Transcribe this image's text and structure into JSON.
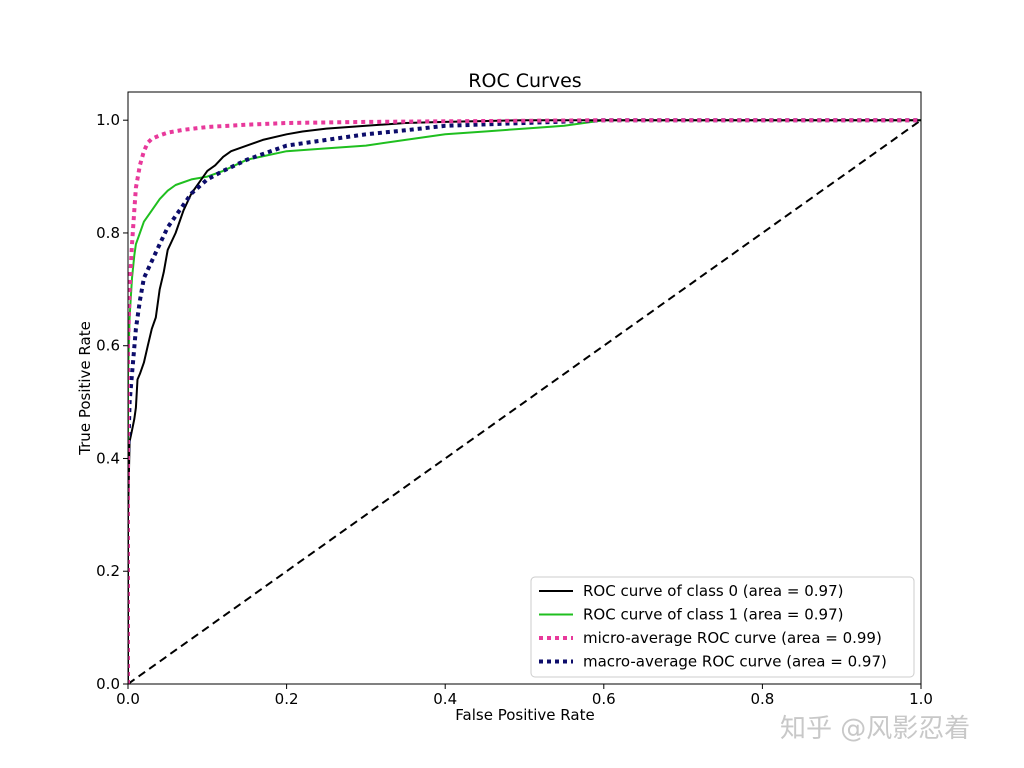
{
  "watermark": "知乎 @风影忍着",
  "chart_data": {
    "type": "line",
    "title": "ROC Curves",
    "xlabel": "False Positive Rate",
    "ylabel": "True Positive Rate",
    "xlim": [
      0.0,
      1.0
    ],
    "ylim": [
      0.0,
      1.05
    ],
    "xticks": [
      "0.0",
      "0.2",
      "0.4",
      "0.6",
      "0.8",
      "1.0"
    ],
    "yticks": [
      "0.0",
      "0.2",
      "0.4",
      "0.6",
      "0.8",
      "1.0"
    ],
    "grid": false,
    "legend_position": "lower-right",
    "series": [
      {
        "name": "ROC curve of class 0 (area = 0.97)",
        "color": "#000000",
        "style": "solid",
        "x": [
          0.0,
          0.0,
          0.002,
          0.005,
          0.008,
          0.01,
          0.012,
          0.015,
          0.02,
          0.025,
          0.03,
          0.035,
          0.04,
          0.045,
          0.05,
          0.06,
          0.07,
          0.08,
          0.09,
          0.1,
          0.11,
          0.12,
          0.13,
          0.15,
          0.17,
          0.2,
          0.22,
          0.25,
          0.3,
          0.35,
          0.4,
          0.5,
          0.6,
          0.8,
          1.0
        ],
        "y": [
          0.0,
          0.3,
          0.43,
          0.45,
          0.47,
          0.49,
          0.54,
          0.55,
          0.57,
          0.6,
          0.63,
          0.65,
          0.7,
          0.73,
          0.77,
          0.8,
          0.84,
          0.87,
          0.89,
          0.91,
          0.92,
          0.935,
          0.945,
          0.955,
          0.965,
          0.975,
          0.98,
          0.985,
          0.99,
          0.995,
          0.997,
          1.0,
          1.0,
          1.0,
          1.0
        ]
      },
      {
        "name": "ROC curve of class 1 (area = 0.97)",
        "color": "#1fbf1f",
        "style": "solid",
        "x": [
          0.0,
          0.0,
          0.002,
          0.005,
          0.008,
          0.01,
          0.015,
          0.02,
          0.03,
          0.04,
          0.05,
          0.06,
          0.08,
          0.1,
          0.12,
          0.15,
          0.2,
          0.25,
          0.3,
          0.35,
          0.4,
          0.45,
          0.5,
          0.55,
          0.6,
          0.8,
          1.0
        ],
        "y": [
          0.0,
          0.55,
          0.65,
          0.72,
          0.76,
          0.78,
          0.8,
          0.82,
          0.84,
          0.86,
          0.875,
          0.885,
          0.895,
          0.9,
          0.91,
          0.93,
          0.945,
          0.95,
          0.955,
          0.965,
          0.975,
          0.98,
          0.985,
          0.99,
          1.0,
          1.0,
          1.0
        ]
      },
      {
        "name": "micro-average ROC curve (area = 0.99)",
        "color": "#e8399b",
        "style": "dotted",
        "x": [
          0.0,
          0.0,
          0.002,
          0.005,
          0.008,
          0.01,
          0.015,
          0.02,
          0.025,
          0.03,
          0.04,
          0.05,
          0.07,
          0.1,
          0.15,
          0.2,
          0.3,
          0.4,
          0.6,
          0.8,
          1.0
        ],
        "y": [
          0.0,
          0.6,
          0.7,
          0.78,
          0.84,
          0.88,
          0.92,
          0.945,
          0.96,
          0.967,
          0.973,
          0.978,
          0.983,
          0.988,
          0.992,
          0.995,
          0.997,
          0.998,
          1.0,
          1.0,
          1.0
        ]
      },
      {
        "name": "macro-average ROC curve (area = 0.97)",
        "color": "#0d0d6b",
        "style": "dotted",
        "x": [
          0.0,
          0.0,
          0.002,
          0.005,
          0.01,
          0.015,
          0.02,
          0.03,
          0.04,
          0.05,
          0.06,
          0.07,
          0.08,
          0.1,
          0.12,
          0.15,
          0.2,
          0.25,
          0.3,
          0.35,
          0.4,
          0.5,
          0.6,
          0.8,
          1.0
        ],
        "y": [
          0.0,
          0.4,
          0.5,
          0.55,
          0.63,
          0.68,
          0.72,
          0.75,
          0.78,
          0.81,
          0.83,
          0.85,
          0.87,
          0.895,
          0.91,
          0.93,
          0.955,
          0.965,
          0.975,
          0.982,
          0.99,
          0.995,
          1.0,
          1.0,
          1.0
        ]
      },
      {
        "name": "",
        "color": "#000000",
        "style": "dashed",
        "x": [
          0.0,
          1.0
        ],
        "y": [
          0.0,
          1.0
        ]
      }
    ]
  }
}
